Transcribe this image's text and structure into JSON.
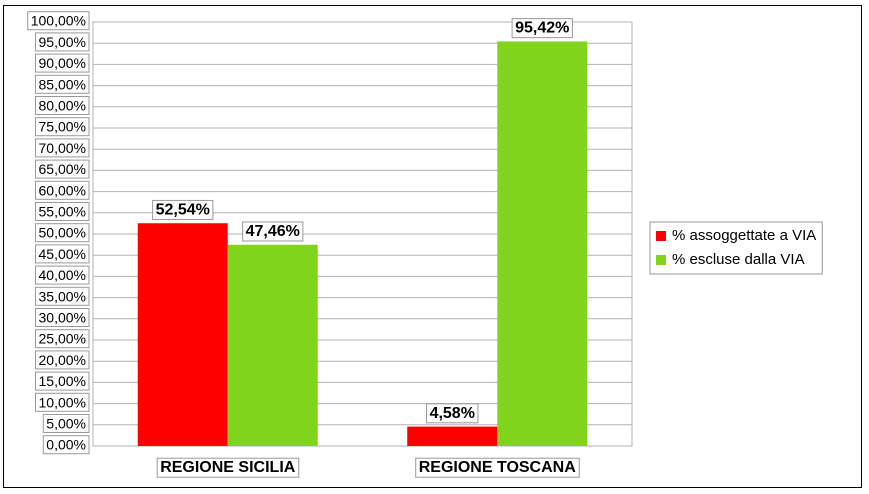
{
  "chart_data": {
    "type": "bar",
    "categories": [
      "REGIONE SICILIA",
      "REGIONE TOSCANA"
    ],
    "series": [
      {
        "name": "% assoggettate a VIA",
        "color": "#ff0000",
        "values": [
          52.54,
          4.58
        ],
        "value_labels": [
          "52,54%",
          "4,58%"
        ]
      },
      {
        "name": "% escluse dalla VIA",
        "color": "#80d51c",
        "values": [
          47.46,
          95.42
        ],
        "value_labels": [
          "47,46%",
          "95,42%"
        ]
      }
    ],
    "ylim": [
      0,
      100
    ],
    "yticks": [
      {
        "value": 0,
        "label": "0,00%"
      },
      {
        "value": 5,
        "label": "5,00%"
      },
      {
        "value": 10,
        "label": "10,00%"
      },
      {
        "value": 15,
        "label": "15,00%"
      },
      {
        "value": 20,
        "label": "20,00%"
      },
      {
        "value": 25,
        "label": "25,00%"
      },
      {
        "value": 30,
        "label": "30,00%"
      },
      {
        "value": 35,
        "label": "35,00%"
      },
      {
        "value": 40,
        "label": "40,00%"
      },
      {
        "value": 45,
        "label": "45,00%"
      },
      {
        "value": 50,
        "label": "50,00%"
      },
      {
        "value": 55,
        "label": "55,00%"
      },
      {
        "value": 60,
        "label": "60,00%"
      },
      {
        "value": 65,
        "label": "65,00%"
      },
      {
        "value": 70,
        "label": "70,00%"
      },
      {
        "value": 75,
        "label": "75,00%"
      },
      {
        "value": 80,
        "label": "80,00%"
      },
      {
        "value": 85,
        "label": "85,00%"
      },
      {
        "value": 90,
        "label": "90,00%"
      },
      {
        "value": 95,
        "label": "95,00%"
      },
      {
        "value": 100,
        "label": "100,00%"
      }
    ],
    "grid": true,
    "legend": "right"
  }
}
